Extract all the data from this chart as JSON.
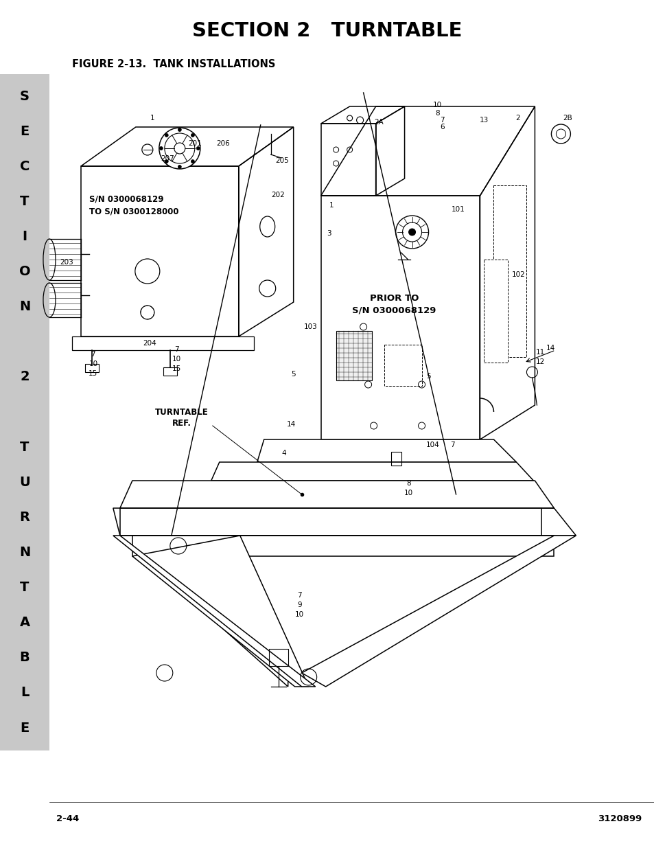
{
  "title": "SECTION 2   TURNTABLE",
  "figure_label": "FIGURE 2-13.  TANK INSTALLATIONS",
  "page_number_left": "2-44",
  "page_number_right": "3120899",
  "side_tab_letters": [
    "S",
    "E",
    "C",
    "T",
    "I",
    "O",
    "N",
    "",
    "2",
    "",
    "T",
    "U",
    "R",
    "N",
    "T",
    "A",
    "B",
    "L",
    "E"
  ],
  "bg_color": "#ffffff",
  "side_tab_bg": "#c8c8c8",
  "title_fontsize": 21,
  "figure_label_fontsize": 10.5,
  "footer_fontsize": 9.5,
  "diagram_labels": [
    [
      222,
      172,
      "1"
    ],
    [
      284,
      209,
      "201"
    ],
    [
      325,
      209,
      "206"
    ],
    [
      244,
      231,
      "207"
    ],
    [
      411,
      234,
      "205"
    ],
    [
      405,
      284,
      "202"
    ],
    [
      97,
      382,
      "203"
    ],
    [
      136,
      516,
      "7"
    ],
    [
      136,
      530,
      "10"
    ],
    [
      136,
      544,
      "15"
    ],
    [
      258,
      509,
      "7"
    ],
    [
      258,
      523,
      "10"
    ],
    [
      258,
      537,
      "15"
    ],
    [
      218,
      500,
      "204"
    ],
    [
      553,
      178,
      "2A"
    ],
    [
      706,
      175,
      "13"
    ],
    [
      755,
      172,
      "2"
    ],
    [
      828,
      172,
      "2B"
    ],
    [
      638,
      153,
      "10"
    ],
    [
      638,
      165,
      "8"
    ],
    [
      645,
      175,
      "7"
    ],
    [
      645,
      185,
      "6"
    ],
    [
      483,
      299,
      "1"
    ],
    [
      668,
      305,
      "101"
    ],
    [
      480,
      340,
      "3"
    ],
    [
      756,
      400,
      "102"
    ],
    [
      803,
      507,
      "14"
    ],
    [
      453,
      476,
      "103"
    ],
    [
      428,
      545,
      "5"
    ],
    [
      625,
      548,
      "5"
    ],
    [
      425,
      618,
      "14"
    ],
    [
      414,
      660,
      "4"
    ],
    [
      631,
      648,
      "104"
    ],
    [
      660,
      648,
      "7"
    ],
    [
      596,
      704,
      "8"
    ],
    [
      596,
      718,
      "10"
    ],
    [
      788,
      513,
      "11"
    ],
    [
      788,
      527,
      "12"
    ],
    [
      437,
      867,
      "7"
    ],
    [
      437,
      881,
      "9"
    ],
    [
      437,
      895,
      "10"
    ]
  ]
}
